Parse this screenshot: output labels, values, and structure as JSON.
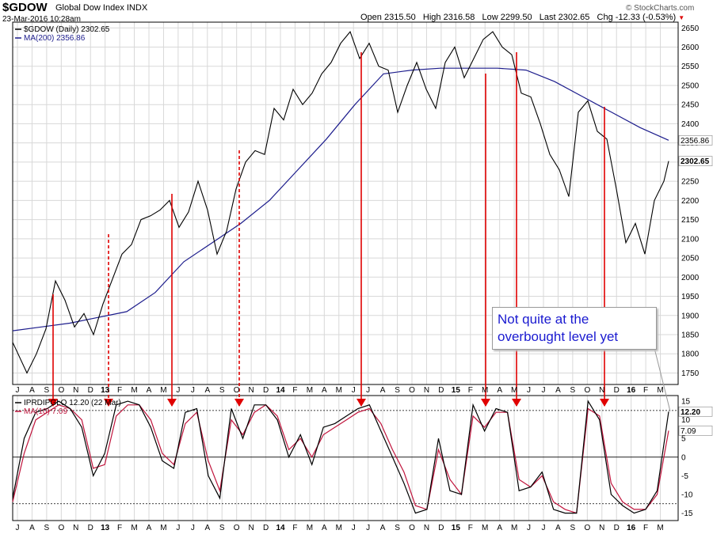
{
  "header": {
    "symbol": "$GDOW",
    "name": "Global Dow Index  INDX",
    "date": "23-Mar-2016 10:28am",
    "open_label": "Open",
    "open": "2315.50",
    "high_label": "High",
    "high": "2316.58",
    "low_label": "Low",
    "low": "2299.50",
    "last_label": "Last",
    "last": "2302.65",
    "chg_label": "Chg",
    "chg": "-12.33 (-0.53%)",
    "brand": "© StockCharts.com"
  },
  "annotation": "Not quite at the overbought level yet",
  "colors": {
    "price": "#000000",
    "ma200": "#1c1c8c",
    "osc": "#000000",
    "osc_ma": "#c0143c",
    "arrow": "#e00000",
    "grid": "#d8d8d8"
  },
  "chart_data": [
    {
      "type": "line",
      "legend": [
        "$GDOW (Daily) 2302.65",
        "MA(200) 2356.86"
      ],
      "ylim": [
        1720,
        2665
      ],
      "yticks": [
        1750,
        1800,
        1850,
        1900,
        1950,
        2000,
        2050,
        2100,
        2150,
        2200,
        2250,
        2300,
        2350,
        2400,
        2450,
        2500,
        2550,
        2600,
        2650
      ],
      "last_labels": [
        "2356.86",
        "2302.65"
      ],
      "series": [
        {
          "name": "$GDOW (Daily)",
          "points": [
            [
              0,
              1830
            ],
            [
              1.5,
              1750
            ],
            [
              2.5,
              1800
            ],
            [
              3.5,
              1865
            ],
            [
              4.5,
              1990
            ],
            [
              5.5,
              1940
            ],
            [
              6.5,
              1870
            ],
            [
              7.5,
              1905
            ],
            [
              8.5,
              1850
            ],
            [
              9.5,
              1930
            ],
            [
              10.5,
              1995
            ],
            [
              11.5,
              2060
            ],
            [
              12.5,
              2085
            ],
            [
              13.5,
              2150
            ],
            [
              14.5,
              2160
            ],
            [
              15.5,
              2175
            ],
            [
              16.5,
              2200
            ],
            [
              17.5,
              2130
            ],
            [
              18.5,
              2170
            ],
            [
              19.5,
              2250
            ],
            [
              20.5,
              2175
            ],
            [
              21.5,
              2060
            ],
            [
              22.5,
              2120
            ],
            [
              23.5,
              2230
            ],
            [
              24.5,
              2300
            ],
            [
              25.5,
              2330
            ],
            [
              26.5,
              2320
            ],
            [
              27.5,
              2440
            ],
            [
              28.5,
              2410
            ],
            [
              29.5,
              2490
            ],
            [
              30.5,
              2450
            ],
            [
              31.5,
              2480
            ],
            [
              32.5,
              2530
            ],
            [
              33.5,
              2560
            ],
            [
              34.5,
              2610
            ],
            [
              35.5,
              2640
            ],
            [
              36.5,
              2570
            ],
            [
              37.5,
              2610
            ],
            [
              38.5,
              2550
            ],
            [
              39.5,
              2540
            ],
            [
              40.5,
              2430
            ],
            [
              41.5,
              2500
            ],
            [
              42.5,
              2560
            ],
            [
              43.5,
              2490
            ],
            [
              44.5,
              2440
            ],
            [
              45.5,
              2560
            ],
            [
              46.5,
              2600
            ],
            [
              47.5,
              2520
            ],
            [
              48.5,
              2570
            ],
            [
              49.5,
              2620
            ],
            [
              50.5,
              2640
            ],
            [
              51.5,
              2600
            ],
            [
              52.5,
              2580
            ],
            [
              53.5,
              2480
            ],
            [
              54.5,
              2470
            ],
            [
              55.5,
              2400
            ],
            [
              56.5,
              2320
            ],
            [
              57.5,
              2280
            ],
            [
              58.5,
              2210
            ],
            [
              59.5,
              2430
            ],
            [
              60.5,
              2460
            ],
            [
              61.5,
              2380
            ],
            [
              62.5,
              2360
            ],
            [
              63.5,
              2230
            ],
            [
              64.5,
              2090
            ],
            [
              65.5,
              2140
            ],
            [
              66.5,
              2060
            ],
            [
              67.5,
              2200
            ],
            [
              68.5,
              2250
            ],
            [
              69,
              2302.65
            ]
          ]
        },
        {
          "name": "MA(200)",
          "points": [
            [
              0,
              1860
            ],
            [
              3,
              1870
            ],
            [
              6,
              1880
            ],
            [
              9,
              1895
            ],
            [
              12,
              1910
            ],
            [
              15,
              1960
            ],
            [
              18,
              2040
            ],
            [
              21,
              2090
            ],
            [
              24,
              2140
            ],
            [
              27,
              2200
            ],
            [
              30,
              2280
            ],
            [
              33,
              2360
            ],
            [
              36,
              2450
            ],
            [
              39,
              2530
            ],
            [
              42,
              2540
            ],
            [
              45,
              2545
            ],
            [
              48,
              2545
            ],
            [
              51,
              2545
            ],
            [
              54,
              2540
            ],
            [
              57,
              2510
            ],
            [
              60,
              2470
            ],
            [
              63,
              2430
            ],
            [
              66,
              2390
            ],
            [
              69,
              2356.86
            ]
          ]
        }
      ]
    },
    {
      "type": "line",
      "legend": [
        "IPRDIPGLO 12.20 (22 Mar)",
        "MA(10) 7.09"
      ],
      "ylim": [
        -17,
        16.5
      ],
      "yticks": [
        -15,
        -10,
        -5,
        0,
        5,
        10,
        15
      ],
      "reference_lines": [
        12.5,
        0,
        -12.5
      ],
      "last_labels": [
        "12.20",
        "7.09"
      ],
      "series": [
        {
          "name": "IPRDIPGLO",
          "points": [
            [
              0,
              -11
            ],
            [
              1,
              5
            ],
            [
              2,
              12
            ],
            [
              3,
              13
            ],
            [
              4,
              15
            ],
            [
              5,
              13
            ],
            [
              6,
              8
            ],
            [
              7,
              -5
            ],
            [
              8,
              1
            ],
            [
              9,
              14
            ],
            [
              10,
              15
            ],
            [
              11,
              14
            ],
            [
              12,
              8
            ],
            [
              13,
              -1
            ],
            [
              14,
              -3
            ],
            [
              15,
              12
            ],
            [
              16,
              13
            ],
            [
              17,
              -5
            ],
            [
              18,
              -11
            ],
            [
              19,
              13
            ],
            [
              20,
              5
            ],
            [
              21,
              14
            ],
            [
              22,
              14
            ],
            [
              23,
              10
            ],
            [
              24,
              0
            ],
            [
              25,
              6
            ],
            [
              26,
              -2
            ],
            [
              27,
              8
            ],
            [
              28,
              9
            ],
            [
              29,
              11
            ],
            [
              30,
              13
            ],
            [
              31,
              14
            ],
            [
              32,
              7
            ],
            [
              33,
              0
            ],
            [
              34,
              -7
            ],
            [
              35,
              -15
            ],
            [
              36,
              -14
            ],
            [
              37,
              5
            ],
            [
              38,
              -9
            ],
            [
              39,
              -10
            ],
            [
              40,
              14
            ],
            [
              41,
              7
            ],
            [
              42,
              13
            ],
            [
              43,
              12
            ],
            [
              44,
              -9
            ],
            [
              45,
              -8
            ],
            [
              46,
              -4
            ],
            [
              47,
              -14
            ],
            [
              48,
              -15
            ],
            [
              49,
              -15
            ],
            [
              50,
              15
            ],
            [
              51,
              10
            ],
            [
              52,
              -10
            ],
            [
              53,
              -13
            ],
            [
              54,
              -15
            ],
            [
              55,
              -14
            ],
            [
              56,
              -9
            ],
            [
              57,
              12.2
            ]
          ]
        },
        {
          "name": "MA(10)",
          "points": [
            [
              0,
              -12
            ],
            [
              1,
              1
            ],
            [
              2,
              10
            ],
            [
              3,
              12
            ],
            [
              4,
              14
            ],
            [
              5,
              13
            ],
            [
              6,
              10
            ],
            [
              7,
              -3
            ],
            [
              8,
              -2
            ],
            [
              9,
              11
            ],
            [
              10,
              14
            ],
            [
              11,
              14
            ],
            [
              12,
              10
            ],
            [
              13,
              1
            ],
            [
              14,
              -2
            ],
            [
              15,
              9
            ],
            [
              16,
              12
            ],
            [
              17,
              -1
            ],
            [
              18,
              -9
            ],
            [
              19,
              10
            ],
            [
              20,
              6
            ],
            [
              21,
              12
            ],
            [
              22,
              14
            ],
            [
              23,
              11
            ],
            [
              24,
              2
            ],
            [
              25,
              5
            ],
            [
              26,
              0
            ],
            [
              27,
              6
            ],
            [
              28,
              8
            ],
            [
              29,
              10
            ],
            [
              30,
              12
            ],
            [
              31,
              13
            ],
            [
              32,
              9
            ],
            [
              33,
              2
            ],
            [
              34,
              -4
            ],
            [
              35,
              -13
            ],
            [
              36,
              -14
            ],
            [
              37,
              2
            ],
            [
              38,
              -6
            ],
            [
              39,
              -10
            ],
            [
              40,
              11
            ],
            [
              41,
              8
            ],
            [
              42,
              12
            ],
            [
              43,
              12
            ],
            [
              44,
              -6
            ],
            [
              45,
              -8
            ],
            [
              46,
              -5
            ],
            [
              47,
              -12
            ],
            [
              48,
              -14
            ],
            [
              49,
              -15
            ],
            [
              50,
              13
            ],
            [
              51,
              11
            ],
            [
              52,
              -7
            ],
            [
              53,
              -12
            ],
            [
              54,
              -14
            ],
            [
              55,
              -14
            ],
            [
              56,
              -10
            ],
            [
              57,
              7.09
            ]
          ]
        }
      ]
    }
  ],
  "x_axis_labels": [
    "J",
    "A",
    "S",
    "O",
    "N",
    "D",
    "13",
    "F",
    "M",
    "A",
    "M",
    "J",
    "J",
    "A",
    "S",
    "O",
    "N",
    "D",
    "14",
    "F",
    "M",
    "A",
    "M",
    "J",
    "J",
    "A",
    "S",
    "O",
    "N",
    "D",
    "15",
    "F",
    "M",
    "A",
    "M",
    "J",
    "J",
    "A",
    "S",
    "O",
    "N",
    "D",
    "16",
    "F",
    "M"
  ]
}
